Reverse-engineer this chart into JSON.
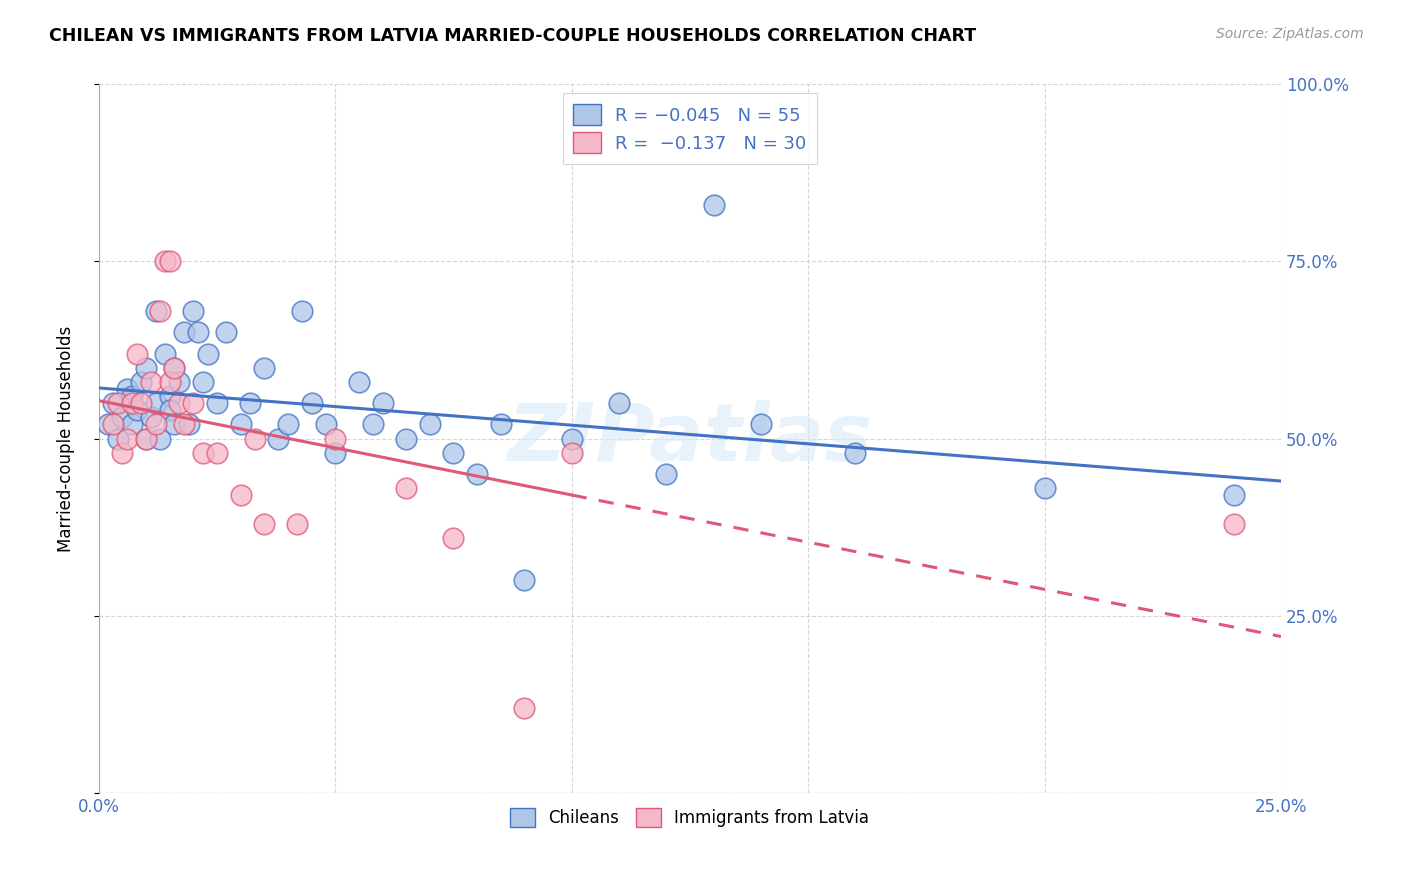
{
  "title": "CHILEAN VS IMMIGRANTS FROM LATVIA MARRIED-COUPLE HOUSEHOLDS CORRELATION CHART",
  "source": "Source: ZipAtlas.com",
  "ylabel": "Married-couple Households",
  "xmin": 0.0,
  "xmax": 0.25,
  "ymin": 0.0,
  "ymax": 1.0,
  "color_blue": "#aec6e8",
  "color_pink": "#f4b8c8",
  "line_color_blue": "#4472c4",
  "line_color_pink": "#e05878",
  "watermark": "ZIPatlas",
  "blue_x": [
    0.002,
    0.003,
    0.004,
    0.005,
    0.006,
    0.007,
    0.007,
    0.008,
    0.009,
    0.01,
    0.01,
    0.011,
    0.012,
    0.012,
    0.013,
    0.014,
    0.015,
    0.015,
    0.016,
    0.016,
    0.017,
    0.018,
    0.019,
    0.02,
    0.021,
    0.022,
    0.023,
    0.025,
    0.027,
    0.03,
    0.032,
    0.035,
    0.038,
    0.04,
    0.043,
    0.045,
    0.048,
    0.05,
    0.055,
    0.058,
    0.06,
    0.065,
    0.07,
    0.075,
    0.08,
    0.085,
    0.09,
    0.1,
    0.11,
    0.12,
    0.13,
    0.14,
    0.16,
    0.2,
    0.24
  ],
  "blue_y": [
    0.52,
    0.55,
    0.5,
    0.53,
    0.57,
    0.52,
    0.56,
    0.54,
    0.58,
    0.5,
    0.6,
    0.53,
    0.55,
    0.68,
    0.5,
    0.62,
    0.56,
    0.54,
    0.6,
    0.52,
    0.58,
    0.65,
    0.52,
    0.68,
    0.65,
    0.58,
    0.62,
    0.55,
    0.65,
    0.52,
    0.55,
    0.6,
    0.5,
    0.52,
    0.68,
    0.55,
    0.52,
    0.48,
    0.58,
    0.52,
    0.55,
    0.5,
    0.52,
    0.48,
    0.45,
    0.52,
    0.3,
    0.5,
    0.55,
    0.45,
    0.83,
    0.52,
    0.48,
    0.43,
    0.42
  ],
  "pink_x": [
    0.003,
    0.004,
    0.005,
    0.006,
    0.007,
    0.008,
    0.009,
    0.01,
    0.011,
    0.012,
    0.013,
    0.014,
    0.015,
    0.015,
    0.016,
    0.017,
    0.018,
    0.02,
    0.022,
    0.025,
    0.03,
    0.033,
    0.035,
    0.042,
    0.05,
    0.065,
    0.075,
    0.09,
    0.1,
    0.24
  ],
  "pink_y": [
    0.52,
    0.55,
    0.48,
    0.5,
    0.55,
    0.62,
    0.55,
    0.5,
    0.58,
    0.52,
    0.68,
    0.75,
    0.75,
    0.58,
    0.6,
    0.55,
    0.52,
    0.55,
    0.48,
    0.48,
    0.42,
    0.5,
    0.38,
    0.38,
    0.5,
    0.43,
    0.36,
    0.12,
    0.48,
    0.38
  ]
}
